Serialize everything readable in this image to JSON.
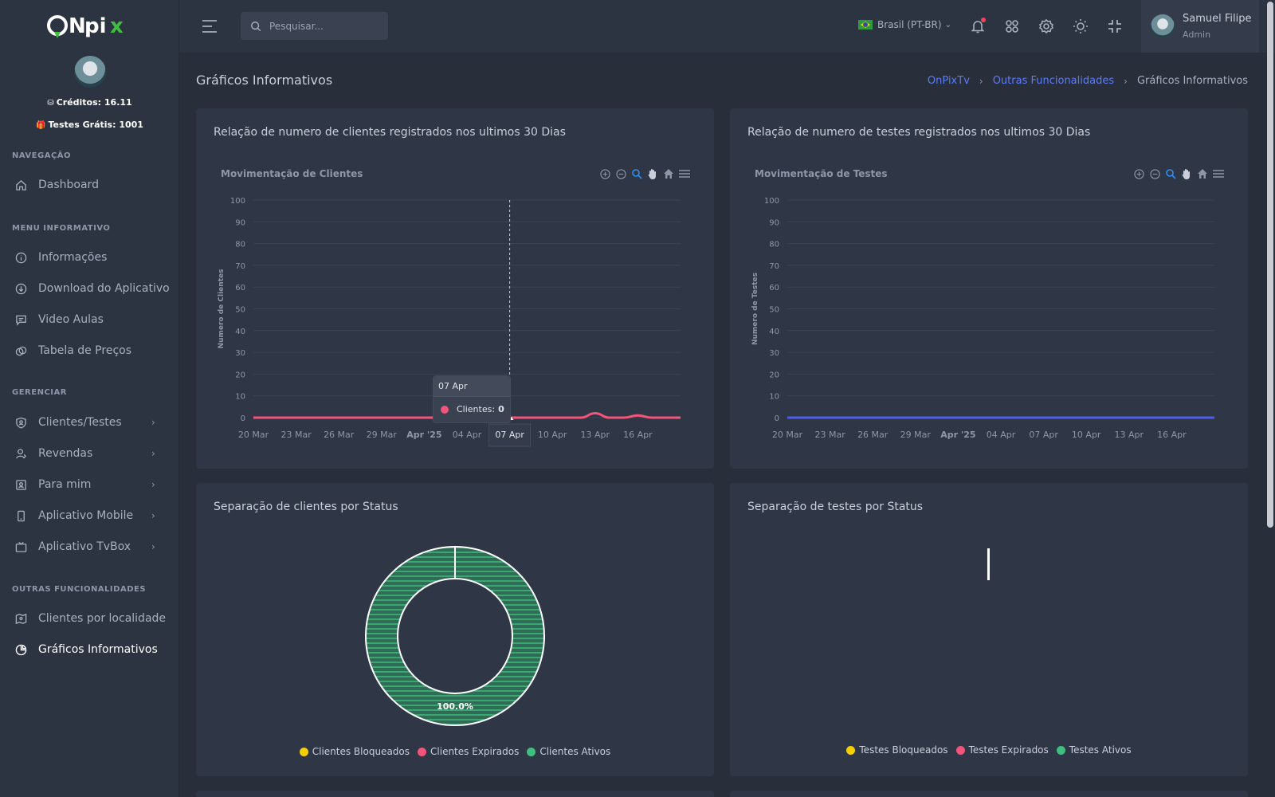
{
  "brand": {
    "logo_text": "ONpix"
  },
  "sidebar": {
    "credits": "Créditos: 16.11",
    "free_tests": "Testes Grátis: 1001",
    "sections": {
      "nav": "NAVEGAÇÃO",
      "info": "MENU INFORMATIVO",
      "manage": "GERENCIAR",
      "other": "OUTRAS FUNCIONALIDADES"
    },
    "items": [
      {
        "label": "Dashboard",
        "icon": "home-icon"
      },
      {
        "label": "Informações",
        "icon": "info-icon"
      },
      {
        "label": "Download do Aplicativo",
        "icon": "cloud-download-icon"
      },
      {
        "label": "Video Aulas",
        "icon": "message-icon"
      },
      {
        "label": "Tabela de Preços",
        "icon": "coins-icon"
      },
      {
        "label": "Clientes/Testes",
        "icon": "shield-icon"
      },
      {
        "label": "Revendas",
        "icon": "user-icon"
      },
      {
        "label": "Para mim",
        "icon": "id-card-icon"
      },
      {
        "label": "Aplicativo Mobile",
        "icon": "phone-icon"
      },
      {
        "label": "Aplicativo TvBox",
        "icon": "tv-icon"
      },
      {
        "label": "Clientes por localidade",
        "icon": "map-icon"
      },
      {
        "label": "Gráficos Informativos",
        "icon": "pie-chart-icon"
      }
    ]
  },
  "topbar": {
    "search_placeholder": "Pesquisar...",
    "language": "Brasil (PT-BR)",
    "user_name": "Samuel Filipe",
    "user_role": "Admin"
  },
  "page": {
    "title": "Gráficos Informativos",
    "breadcrumb": [
      "OnPixTv",
      "Outras Funcionalidades",
      "Gráficos Informativos"
    ]
  },
  "cards": {
    "clients_line_title": "Relação de numero de clientes registrados nos ultimos 30 Dias",
    "tests_line_title": "Relação de numero de testes registrados nos ultimos 30 Dias",
    "clients_status_title": "Separação de clientes por Status",
    "tests_status_title": "Separação de testes por Status"
  },
  "tooltip": {
    "date": "07 Apr",
    "label": "Clientes:",
    "value": "0"
  },
  "colors": {
    "clients_line": "#f2547a",
    "tests_line": "#4f5ee8",
    "bloqueados": "#f5d000",
    "expirados": "#f2547a",
    "ativos": "#3fbf7f",
    "accent": "#5c7cf7"
  },
  "chart_data": [
    {
      "type": "line",
      "title": "Movimentação de Clientes",
      "ylabel": "Numero de Clientes",
      "ylim": [
        0,
        100
      ],
      "yticks": [
        0,
        10,
        20,
        30,
        40,
        50,
        60,
        70,
        80,
        90,
        100
      ],
      "xtick_labels": [
        "20 Mar",
        "23 Mar",
        "26 Mar",
        "29 Mar",
        "Apr '25",
        "04 Apr",
        "07 Apr",
        "10 Apr",
        "13 Apr",
        "16 Apr"
      ],
      "x": [
        "20 Mar",
        "21 Mar",
        "22 Mar",
        "23 Mar",
        "24 Mar",
        "25 Mar",
        "26 Mar",
        "27 Mar",
        "28 Mar",
        "29 Mar",
        "30 Mar",
        "31 Mar",
        "01 Apr",
        "02 Apr",
        "03 Apr",
        "04 Apr",
        "05 Apr",
        "06 Apr",
        "07 Apr",
        "08 Apr",
        "09 Apr",
        "10 Apr",
        "11 Apr",
        "12 Apr",
        "13 Apr",
        "14 Apr",
        "15 Apr",
        "16 Apr",
        "17 Apr",
        "18 Apr",
        "19 Apr"
      ],
      "series": [
        {
          "name": "Clientes",
          "values": [
            0,
            0,
            0,
            0,
            0,
            0,
            0,
            0,
            0,
            0,
            0,
            0,
            0,
            0,
            0,
            0,
            0,
            0,
            0,
            0,
            0,
            0,
            0,
            0,
            2,
            0,
            0,
            1,
            0,
            0,
            0
          ]
        }
      ],
      "grid": true
    },
    {
      "type": "line",
      "title": "Movimentação de Testes",
      "ylabel": "Numero de Testes",
      "ylim": [
        0,
        100
      ],
      "yticks": [
        0,
        10,
        20,
        30,
        40,
        50,
        60,
        70,
        80,
        90,
        100
      ],
      "xtick_labels": [
        "20 Mar",
        "23 Mar",
        "26 Mar",
        "29 Mar",
        "Apr '25",
        "04 Apr",
        "07 Apr",
        "10 Apr",
        "13 Apr",
        "16 Apr"
      ],
      "x": [
        "20 Mar",
        "21 Mar",
        "22 Mar",
        "23 Mar",
        "24 Mar",
        "25 Mar",
        "26 Mar",
        "27 Mar",
        "28 Mar",
        "29 Mar",
        "30 Mar",
        "31 Mar",
        "01 Apr",
        "02 Apr",
        "03 Apr",
        "04 Apr",
        "05 Apr",
        "06 Apr",
        "07 Apr",
        "08 Apr",
        "09 Apr",
        "10 Apr",
        "11 Apr",
        "12 Apr",
        "13 Apr",
        "14 Apr",
        "15 Apr",
        "16 Apr",
        "17 Apr",
        "18 Apr",
        "19 Apr"
      ],
      "series": [
        {
          "values": [
            0,
            0,
            0,
            0,
            0,
            0,
            0,
            0,
            0,
            0,
            0,
            0,
            0,
            0,
            0,
            0,
            0,
            0,
            0,
            0,
            0,
            0,
            0,
            0,
            0,
            0,
            0,
            0,
            0,
            0,
            0
          ]
        }
      ],
      "grid": true
    },
    {
      "type": "pie",
      "labels": [
        "Clientes Bloqueados",
        "Clientes Expirados",
        "Clientes Ativos"
      ],
      "values": [
        0,
        0,
        100
      ],
      "data_labels": [
        "",
        "",
        "100.0%"
      ]
    },
    {
      "type": "pie",
      "labels": [
        "Testes Bloqueados",
        "Testes Expirados",
        "Testes Ativos"
      ],
      "values": [
        0,
        0,
        0
      ]
    }
  ]
}
